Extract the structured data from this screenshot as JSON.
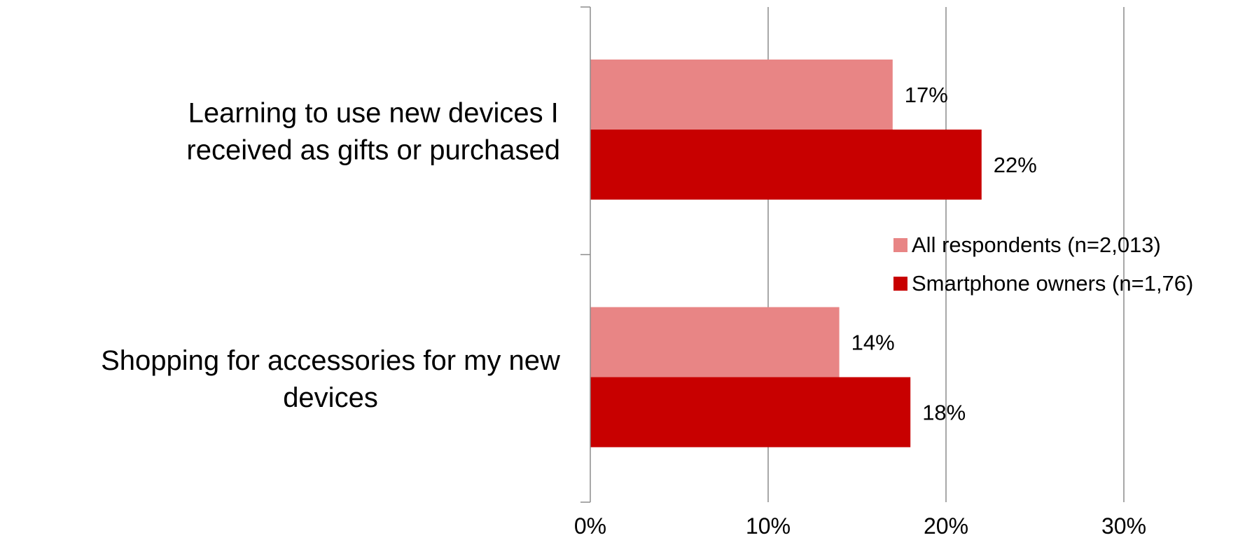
{
  "chart_data": {
    "type": "bar",
    "orientation": "horizontal",
    "categories": [
      [
        "Learning to use new devices I",
        "received as gifts or purchased"
      ],
      [
        "Shopping for accessories for my new",
        "devices"
      ]
    ],
    "series": [
      {
        "name": "All respondents (n=2,013)",
        "color": "#e88585",
        "values": [
          17,
          14
        ],
        "labels": [
          "17%",
          "14%"
        ]
      },
      {
        "name": "Smartphone owners (n=1,76)",
        "color": "#c80000",
        "values": [
          22,
          18
        ],
        "labels": [
          "22%",
          "18%"
        ]
      }
    ],
    "x_ticks": [
      "0%",
      "10%",
      "20%",
      "30%"
    ],
    "xlim": [
      0,
      30
    ],
    "grid": true,
    "legend_position": "right"
  }
}
